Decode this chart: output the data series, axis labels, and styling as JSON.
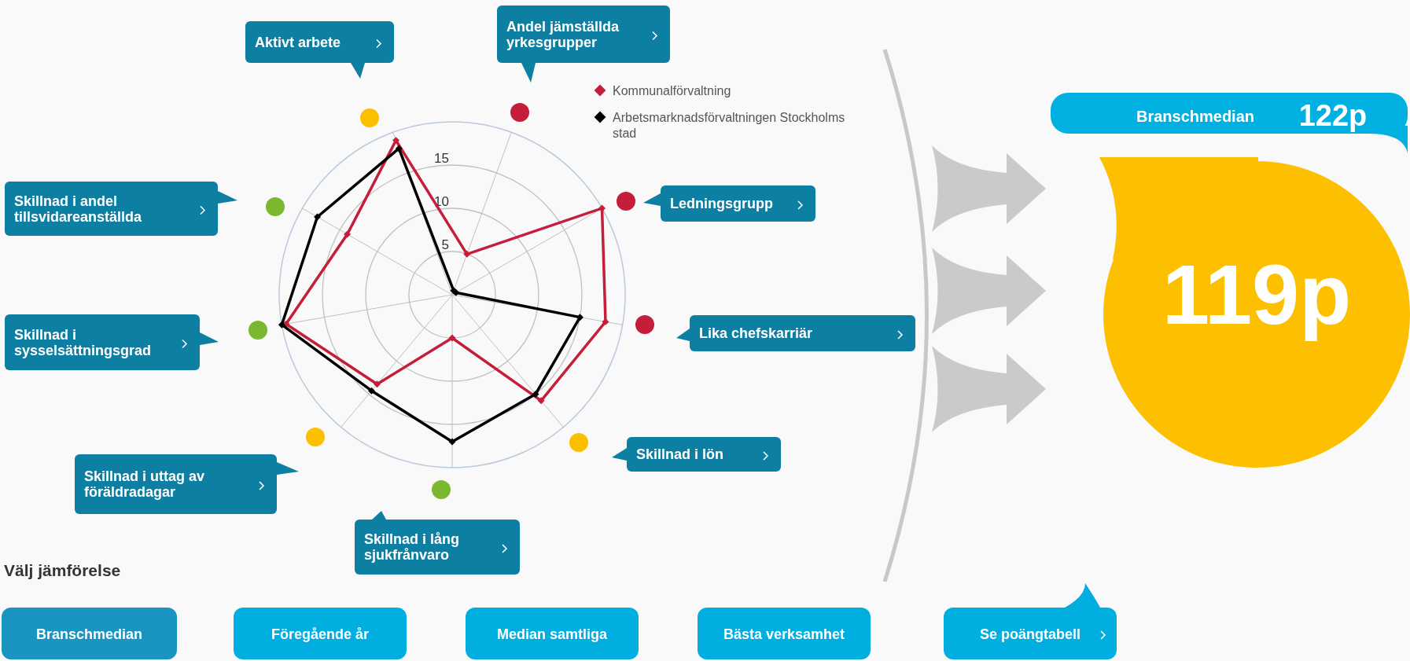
{
  "chart_data": {
    "type": "radar",
    "categories": [
      "Aktivt arbete",
      "Andel jämställda yrkesgrupper",
      "Ledningsgrupp",
      "Lika chefskarriär",
      "Skillnad i lön",
      "Skillnad i lång sjukfrånvaro",
      "Skillnad i uttag av föräldradagar",
      "Skillnad i sysselsättningsgrad",
      "Skillnad i andel tillsvidareanställda"
    ],
    "series": [
      {
        "name": "Kommunalförvaltning",
        "color": "#c41e3a",
        "values": [
          19,
          5,
          20,
          18,
          16,
          5,
          13.5,
          19.5,
          14
        ]
      },
      {
        "name": "Arbetsmarknadsförvaltningen Stockholms stad",
        "color": "#000000",
        "values": [
          18,
          0.5,
          0.5,
          15,
          15,
          17,
          14.5,
          20,
          18
        ]
      }
    ],
    "ylim": [
      0,
      20
    ],
    "yticks": [
      5,
      10,
      15
    ],
    "grid": true,
    "legend": "top right",
    "marker": "diamond",
    "annotations": [
      "Välj jämförelse",
      "Branschmedian",
      "122p",
      "119p",
      "Branschmedian",
      "Föregående år",
      "Median samtliga",
      "Bästa verksamhet",
      "Se poängtabell"
    ]
  }
}
